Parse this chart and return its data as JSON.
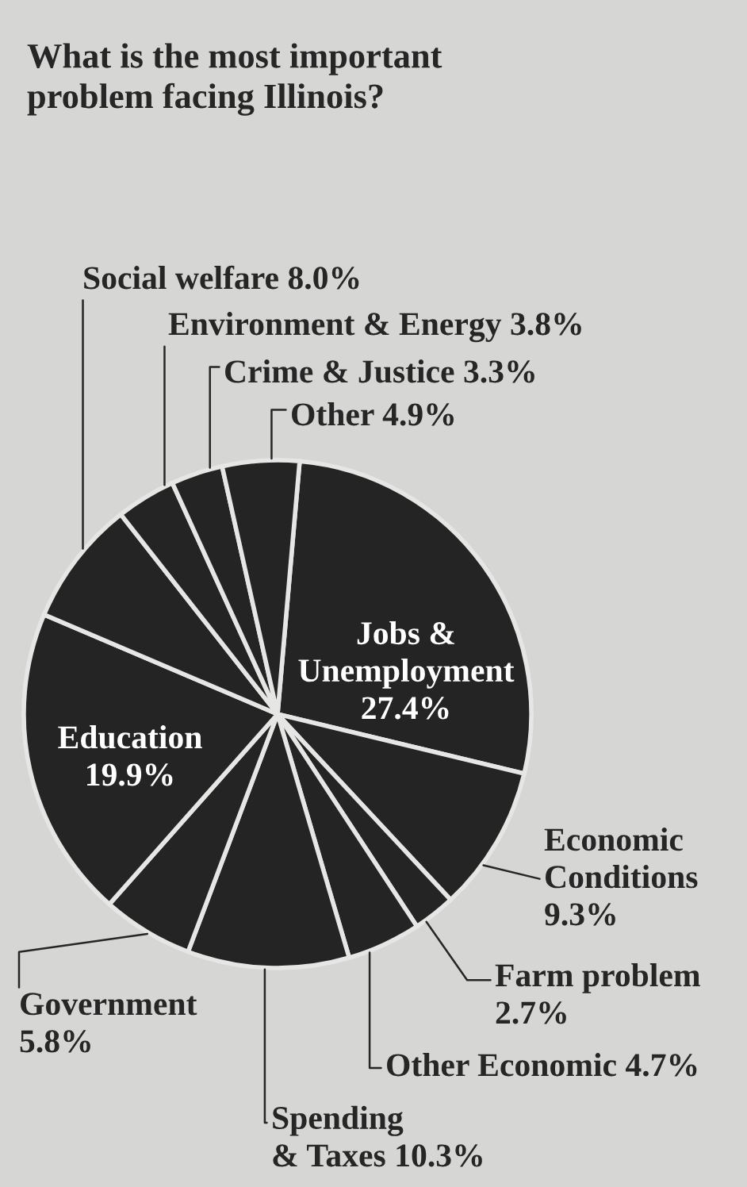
{
  "chart_data": {
    "type": "pie",
    "title": "What is the most important\nproblem facing Illinois?",
    "categories": [
      "Jobs &\nUnemployment",
      "Economic\nConditions",
      "Farm problem",
      "Other Economic",
      "Spending\n& Taxes",
      "Government",
      "Education",
      "Social welfare",
      "Environment & Energy",
      "Crime & Justice",
      "Other"
    ],
    "values": [
      27.4,
      9.3,
      2.7,
      4.7,
      10.3,
      5.8,
      19.9,
      8.0,
      3.8,
      3.3,
      4.9
    ],
    "value_labels": [
      "27.4%",
      "9.3%",
      "2.7%",
      "4.7%",
      "10.3%",
      "5.8%",
      "19.9%",
      "8.0%",
      "3.8%",
      "3.3%",
      "4.9%"
    ],
    "colors": [
      "#242424",
      "#242424",
      "#242424",
      "#242424",
      "#242424",
      "#242424",
      "#242424",
      "#242424",
      "#242424",
      "#242424",
      "#242424"
    ]
  }
}
